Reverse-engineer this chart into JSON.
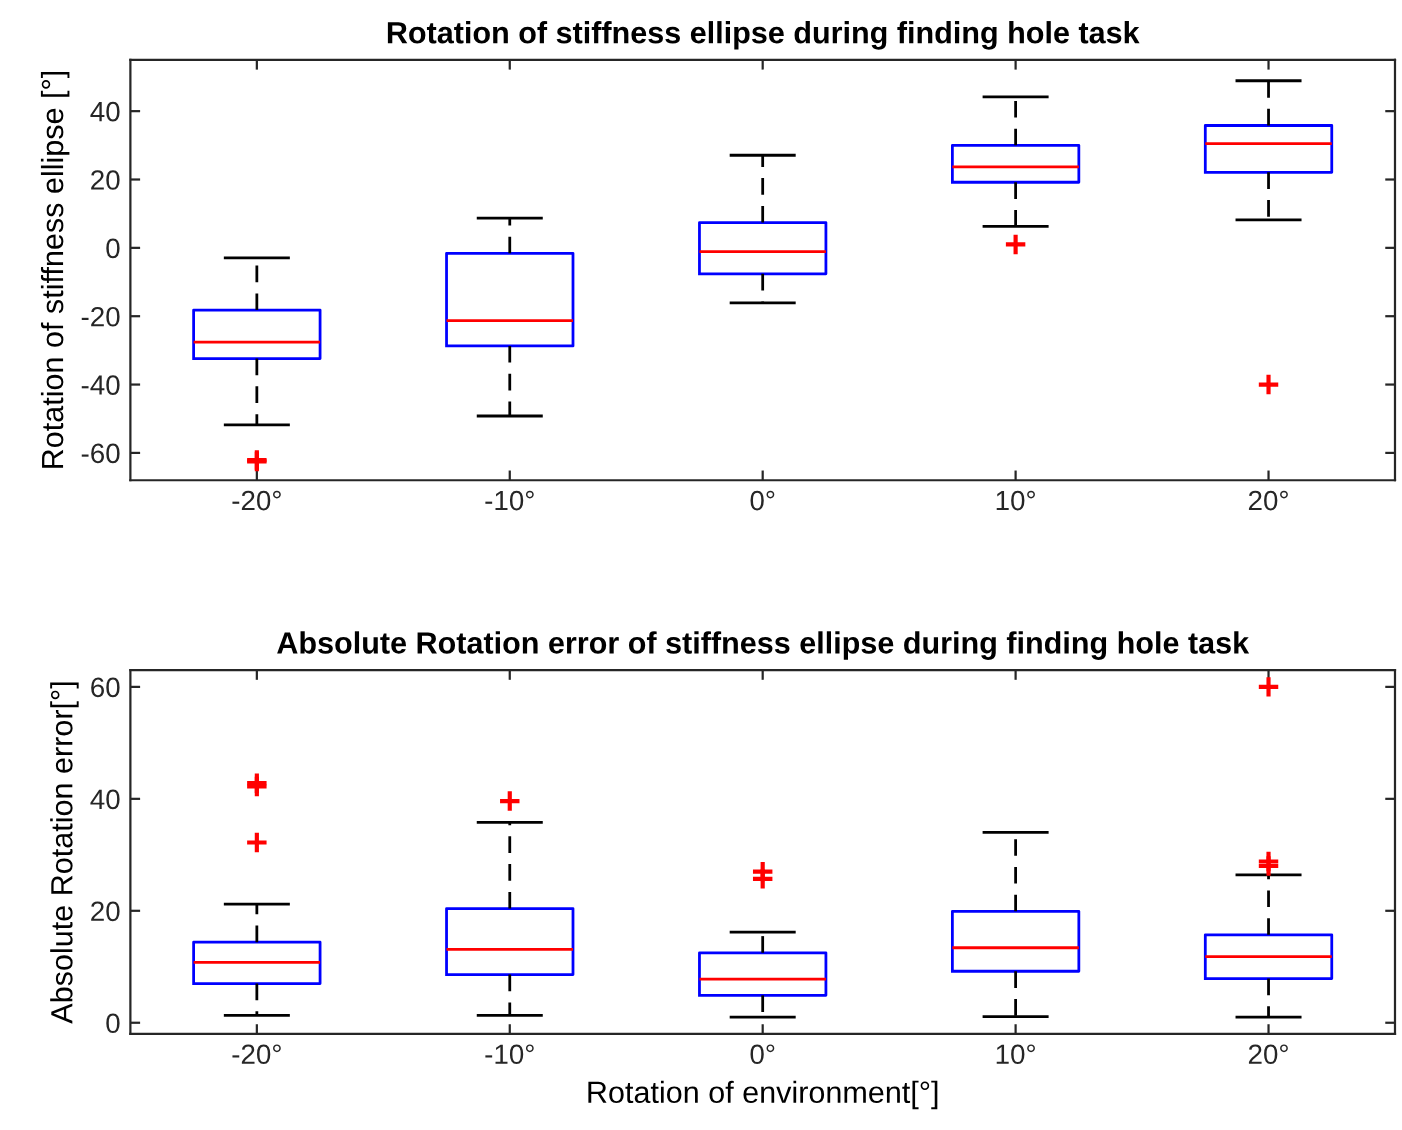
{
  "chart_data": [
    {
      "type": "box",
      "title": "Rotation of stiffness ellipse during finding hole task",
      "ylabel": "Rotation of stiffness ellipse [°]",
      "categories": [
        "-20°",
        "-10°",
        "0°",
        "10°",
        "20°"
      ],
      "ylim": [
        -68,
        55
      ],
      "yticks": [
        -60,
        -40,
        -20,
        0,
        20,
        40
      ],
      "marker": "cross",
      "grid": false,
      "series": [
        {
          "color": "#0000ff",
          "boxes": [
            {
              "low": -51.8,
              "q1": -32.4,
              "median": -27.6,
              "q3": -18.2,
              "high": -2.9,
              "outliers": [
                -62.1,
                -62.5
              ]
            },
            {
              "low": -49.2,
              "q1": -28.7,
              "median": -21.3,
              "q3": -1.6,
              "high": 8.7
            },
            {
              "low": -16.1,
              "q1": -7.6,
              "median": -1.1,
              "q3": 7.4,
              "high": 27.1
            },
            {
              "low": 6.3,
              "q1": 19.2,
              "median": 23.7,
              "q3": 30,
              "high": 44.2,
              "outliers": [
                1
              ]
            },
            {
              "low": 8.2,
              "q1": 22.1,
              "median": 30.5,
              "q3": 35.8,
              "high": 48.9,
              "outliers": [
                -40
              ]
            }
          ]
        }
      ]
    },
    {
      "type": "box",
      "title": "Absolute Rotation error of stiffness ellipse during finding hole task",
      "ylabel": "Absolute Rotation error[°]",
      "xlabel": "Rotation of environment[°]",
      "categories": [
        "-20°",
        "-10°",
        "0°",
        "10°",
        "20°"
      ],
      "ylim": [
        -2,
        63
      ],
      "yticks": [
        0,
        20,
        40,
        60
      ],
      "marker": "cross",
      "grid": false,
      "series": [
        {
          "color": "#0000ff",
          "boxes": [
            {
              "low": 1.3,
              "q1": 7.0,
              "median": 10.8,
              "q3": 14.4,
              "high": 21.2,
              "outliers": [
                32.2,
                42.2,
                42.8
              ]
            },
            {
              "low": 1.3,
              "q1": 8.6,
              "median": 13.1,
              "q3": 20.4,
              "high": 35.8,
              "outliers": [
                39.6
              ]
            },
            {
              "low": 1.0,
              "q1": 4.9,
              "median": 7.8,
              "q3": 12.5,
              "high": 16.2,
              "outliers": [
                25.7,
                27.0
              ]
            },
            {
              "low": 1.1,
              "q1": 9.2,
              "median": 13.4,
              "q3": 19.9,
              "high": 34
            },
            {
              "low": 1.0,
              "q1": 7.9,
              "median": 11.8,
              "q3": 15.7,
              "high": 26.4,
              "outliers": [
                28.0,
                28.8,
                60
              ]
            }
          ]
        }
      ]
    }
  ]
}
